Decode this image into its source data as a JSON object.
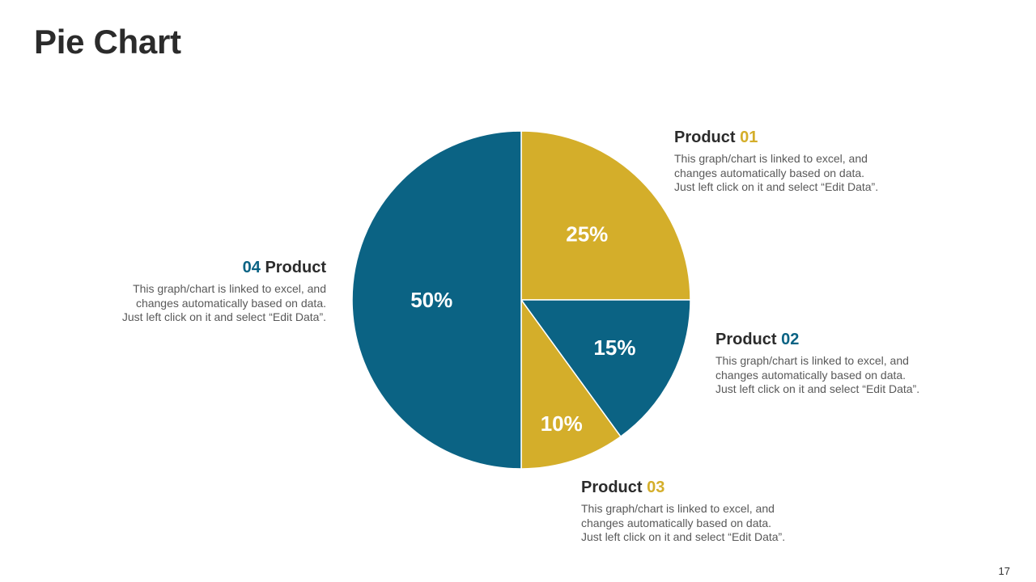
{
  "slide": {
    "title": "Pie Chart",
    "page_number": "17"
  },
  "colors": {
    "gold": "#D4AE2A",
    "teal": "#0B6384",
    "text_dark": "#2B2B2B",
    "text_body": "#595959"
  },
  "chart_data": {
    "type": "pie",
    "start_angle_deg": 0,
    "direction": "clockwise",
    "slices": [
      {
        "label": "Product 01",
        "value": 25,
        "value_label": "25%",
        "color": "#D4AE2A"
      },
      {
        "label": "Product 02",
        "value": 15,
        "value_label": "15%",
        "color": "#0B6384"
      },
      {
        "label": "Product 03",
        "value": 10,
        "value_label": "10%",
        "color": "#D4AE2A"
      },
      {
        "label": "Product 04",
        "value": 50,
        "value_label": "50%",
        "color": "#0B6384"
      }
    ]
  },
  "callouts": {
    "product01": {
      "word": "Product",
      "num": "01",
      "num_color": "#D4AE2A",
      "lines": [
        "This graph/chart is linked to excel, and",
        "changes automatically based on data.",
        "Just left click on it and select “Edit Data”."
      ]
    },
    "product02": {
      "word": "Product",
      "num": "02",
      "num_color": "#0B6384",
      "lines": [
        "This graph/chart is linked to excel, and",
        "changes automatically based on data.",
        "Just left click on it and select “Edit Data”."
      ]
    },
    "product03": {
      "word": "Product",
      "num": "03",
      "num_color": "#D4AE2A",
      "lines": [
        "This graph/chart is linked to excel, and",
        "changes automatically based on data.",
        "Just left click on it and select “Edit Data”."
      ]
    },
    "product04": {
      "word": "Product",
      "num": "04",
      "num_color": "#0B6384",
      "lines": [
        "This graph/chart is linked to excel, and",
        "changes automatically based on data.",
        "Just left click on it and select “Edit Data”."
      ]
    }
  }
}
